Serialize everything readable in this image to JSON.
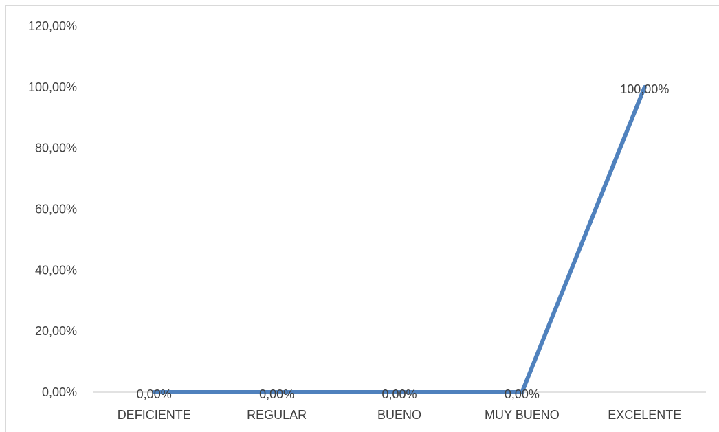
{
  "chart_data": {
    "type": "line",
    "categories": [
      "DEFICIENTE",
      "REGULAR",
      "BUENO",
      "MUY BUENO",
      "EXCELENTE"
    ],
    "series": [
      {
        "values": [
          0,
          0,
          0,
          0,
          100
        ],
        "data_labels": [
          "0,00%",
          "0,00%",
          "0,00%",
          "0,00%",
          "100,00%"
        ],
        "color": "#4F81BD"
      }
    ],
    "ylim": [
      0,
      120
    ],
    "yticks": [
      0,
      20,
      40,
      60,
      80,
      100,
      120
    ],
    "ytick_labels": [
      "0,00%",
      "20,00%",
      "40,00%",
      "60,00%",
      "80,00%",
      "100,00%",
      "120,00%"
    ],
    "grid": false,
    "title": "",
    "xlabel": "",
    "ylabel": ""
  }
}
